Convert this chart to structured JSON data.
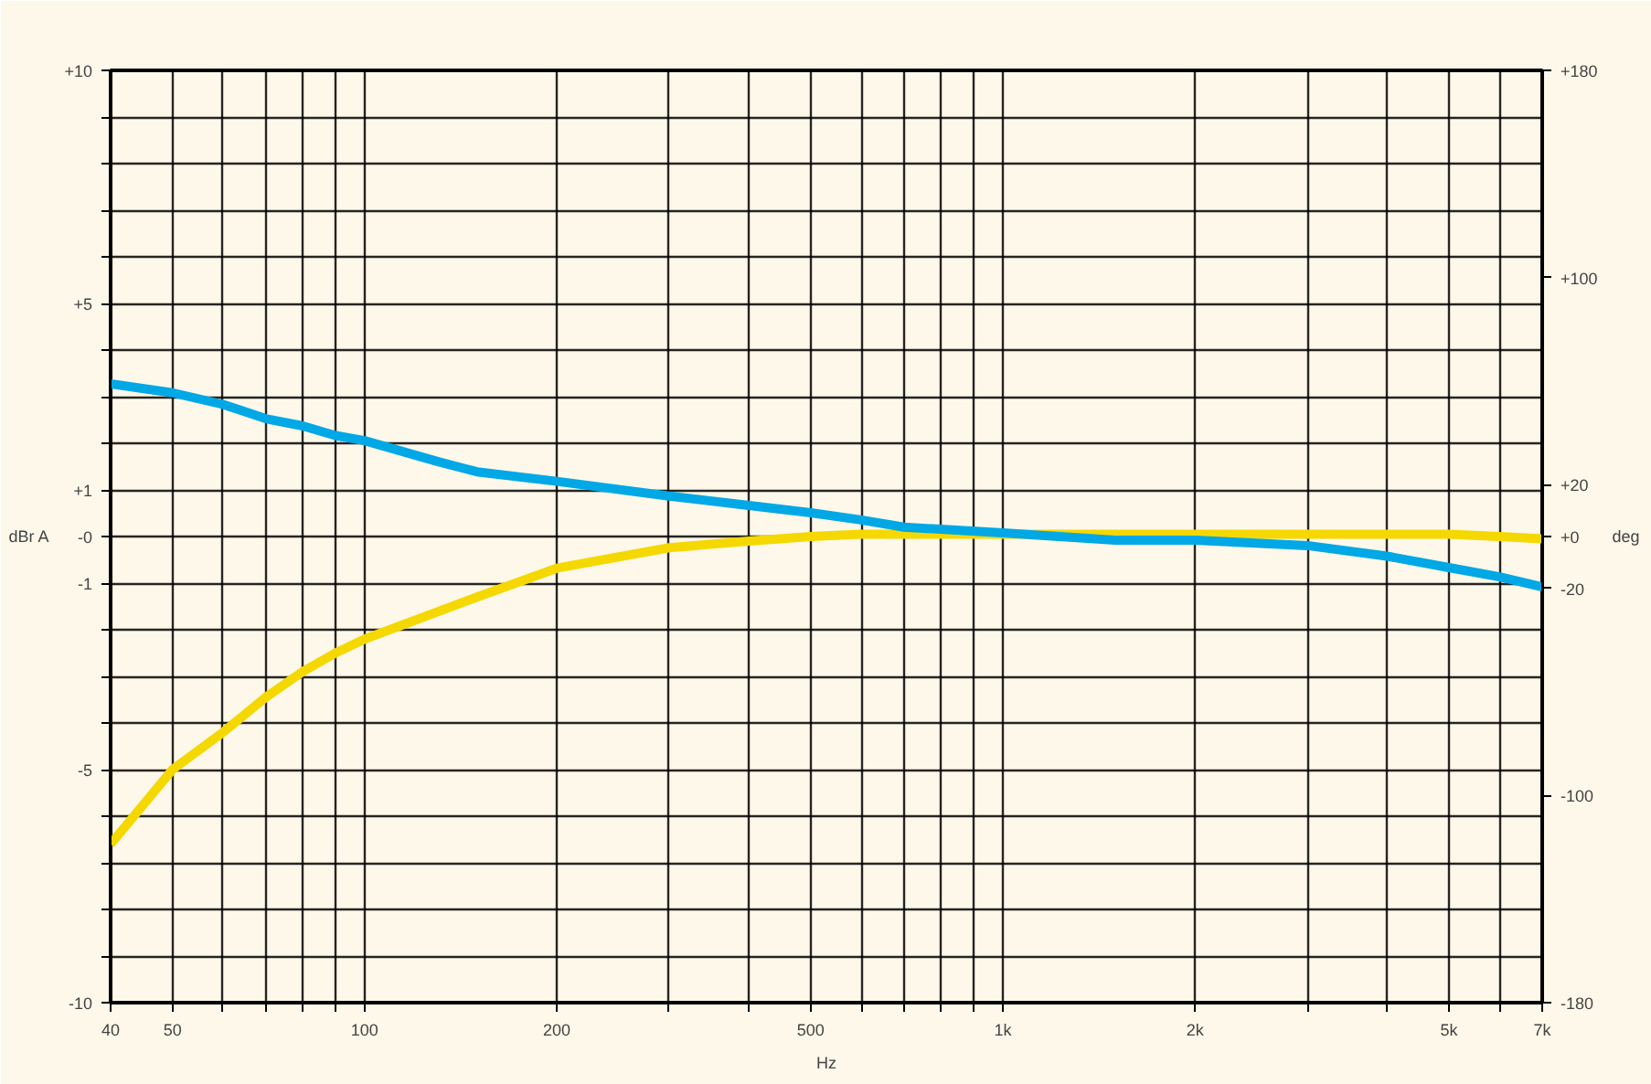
{
  "chart_data": {
    "type": "line",
    "xlabel": "Hz",
    "ylabel": "dBr A",
    "y2label": "deg",
    "log": "x",
    "grid": true,
    "marker": "none",
    "line_style": "solid",
    "xlim": [
      40,
      7000
    ],
    "xticks": [
      40,
      50,
      {
        "value": 60,
        "label": null
      },
      {
        "value": 70,
        "label": null
      },
      {
        "value": 80,
        "label": null
      },
      {
        "value": 90,
        "label": null
      },
      100,
      200,
      {
        "value": 300,
        "label": null
      },
      {
        "value": 400,
        "label": null
      },
      500,
      {
        "value": 600,
        "label": null
      },
      {
        "value": 700,
        "label": null
      },
      {
        "value": 800,
        "label": null
      },
      {
        "value": 900,
        "label": null
      },
      {
        "value": 1000,
        "label": "1k"
      },
      {
        "value": 2000,
        "label": "2k"
      },
      {
        "value": 3000,
        "label": null
      },
      {
        "value": 4000,
        "label": null
      },
      {
        "value": 5000,
        "label": "5k"
      },
      {
        "value": 6000,
        "label": null
      },
      {
        "value": 7000,
        "label": "7k"
      }
    ],
    "ylim": [
      -10,
      10
    ],
    "yticks": [
      {
        "value": 10,
        "label": "+10"
      },
      {
        "value": 9,
        "label": null
      },
      {
        "value": 8,
        "label": null
      },
      {
        "value": 7,
        "label": null
      },
      {
        "value": 6,
        "label": null
      },
      {
        "value": 5,
        "label": "+5"
      },
      {
        "value": 4,
        "label": null
      },
      {
        "value": 3,
        "label": null
      },
      {
        "value": 2,
        "label": null
      },
      {
        "value": 1,
        "label": "+1"
      },
      {
        "value": 0,
        "label": "-0"
      },
      -1,
      {
        "value": -2,
        "label": null
      },
      {
        "value": -3,
        "label": null
      },
      {
        "value": -4,
        "label": null
      },
      -5,
      {
        "value": -6,
        "label": null
      },
      {
        "value": -7,
        "label": null
      },
      {
        "value": -8,
        "label": null
      },
      {
        "value": -9,
        "label": null
      },
      -10
    ],
    "y2lim": [
      -180,
      180
    ],
    "y2ticks": [
      {
        "value": 180,
        "label": "+180"
      },
      {
        "value": 100,
        "label": "+100"
      },
      {
        "value": 20,
        "label": "+20"
      },
      {
        "value": 0,
        "label": "+0"
      },
      -20,
      -100,
      -180
    ],
    "series": [
      {
        "color": "#f5d800",
        "x": [
          40,
          50,
          60,
          70,
          80,
          90,
          100,
          150,
          200,
          300,
          400,
          500,
          600,
          1000,
          2000,
          5000,
          6000,
          7000
        ],
        "values": [
          -6.6,
          -5.0,
          -4.2,
          -3.45,
          -2.9,
          -2.5,
          -2.2,
          -1.3,
          -0.68,
          -0.24,
          -0.1,
          0.0,
          0.05,
          0.05,
          0.05,
          0.05,
          0.0,
          -0.05
        ]
      },
      {
        "color": "#00a8e6",
        "axis": "y2",
        "x": [
          40,
          50,
          60,
          70,
          80,
          90,
          100,
          130,
          150,
          200,
          300,
          400,
          500,
          600,
          700,
          800,
          1000,
          1500,
          2000,
          3000,
          4000,
          5000,
          6000,
          7000
        ],
        "values": [
          59,
          55.5,
          51,
          45.5,
          42.7,
          39,
          37,
          29,
          25,
          21.3,
          15.6,
          12,
          9.2,
          6.4,
          3.6,
          2.8,
          1.4,
          -1.4,
          -1.4,
          -3.5,
          -7.6,
          -12,
          -15.6,
          -19.5
        ]
      }
    ]
  }
}
